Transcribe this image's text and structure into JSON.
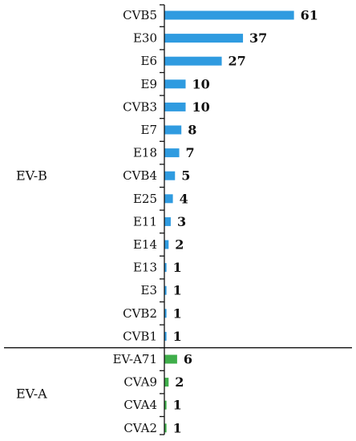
{
  "chart_data": {
    "type": "bar",
    "orientation": "horizontal",
    "groups": [
      {
        "name": "EV-B",
        "color": "#2f9be0",
        "categories": [
          "CVB5",
          "E30",
          "E6",
          "E9",
          "CVB3",
          "E7",
          "E18",
          "CVB4",
          "E25",
          "E11",
          "E14",
          "E13",
          "E3",
          "CVB2",
          "CVB1"
        ],
        "values": [
          61,
          37,
          27,
          10,
          10,
          8,
          7,
          5,
          4,
          3,
          2,
          1,
          1,
          1,
          1
        ]
      },
      {
        "name": "EV-A",
        "color": "#3fae4a",
        "categories": [
          "EV-A71",
          "CVA9",
          "CVA4",
          "CVA2"
        ],
        "values": [
          6,
          2,
          1,
          1
        ]
      }
    ],
    "xlim": [
      0,
      70
    ],
    "data_labels": true,
    "grid": false,
    "legend": "none"
  }
}
